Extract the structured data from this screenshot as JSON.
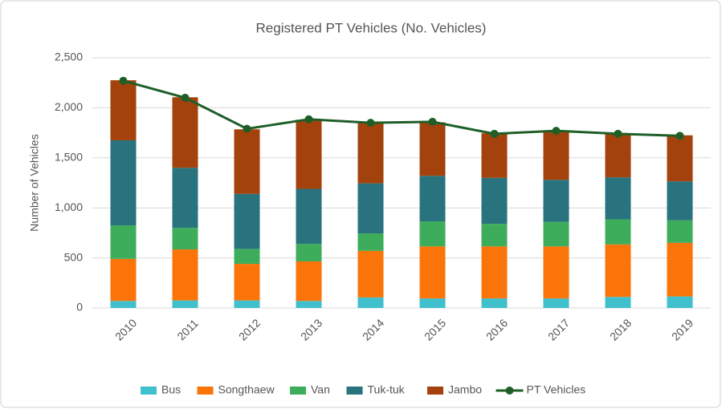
{
  "chart_data": {
    "type": "bar",
    "stacked": true,
    "title": "Registered PT Vehicles (No. Vehicles)",
    "y_label": "Number of Vehicles",
    "categories": [
      "2010",
      "2011",
      "2012",
      "2013",
      "2014",
      "2015",
      "2016",
      "2017",
      "2018",
      "2019"
    ],
    "series": [
      {
        "name": "Bus",
        "color": "#40bfcc",
        "values": [
          70,
          75,
          75,
          70,
          105,
          95,
          95,
          95,
          110,
          115
        ]
      },
      {
        "name": "Songthaew",
        "color": "#fb7409",
        "values": [
          420,
          510,
          365,
          395,
          465,
          520,
          520,
          520,
          525,
          535
        ]
      },
      {
        "name": "Van",
        "color": "#3dad5b",
        "values": [
          335,
          215,
          150,
          175,
          175,
          250,
          225,
          245,
          250,
          225
        ]
      },
      {
        "name": "Tuk-tuk",
        "color": "#28737e",
        "values": [
          850,
          600,
          550,
          550,
          500,
          455,
          460,
          420,
          420,
          390
        ]
      },
      {
        "name": "Jambo",
        "color": "#a3420c",
        "values": [
          600,
          705,
          645,
          690,
          605,
          535,
          445,
          490,
          440,
          460
        ]
      },
      {
        "name": "PT Vehicles",
        "type": "line",
        "color": "#1f5f27",
        "values": [
          2270,
          2100,
          1790,
          1885,
          1850,
          1860,
          1740,
          1770,
          1740,
          1720
        ]
      }
    ],
    "ylim": [
      0,
      2500
    ],
    "yticks": [
      0,
      500,
      {
        "value": 1000,
        "label": "1,000"
      },
      {
        "value": 1500,
        "label": "1,500"
      },
      {
        "value": 2000,
        "label": "2,000"
      },
      {
        "value": 2500,
        "label": "2,500"
      }
    ],
    "grid": true,
    "legend": "bottom"
  }
}
